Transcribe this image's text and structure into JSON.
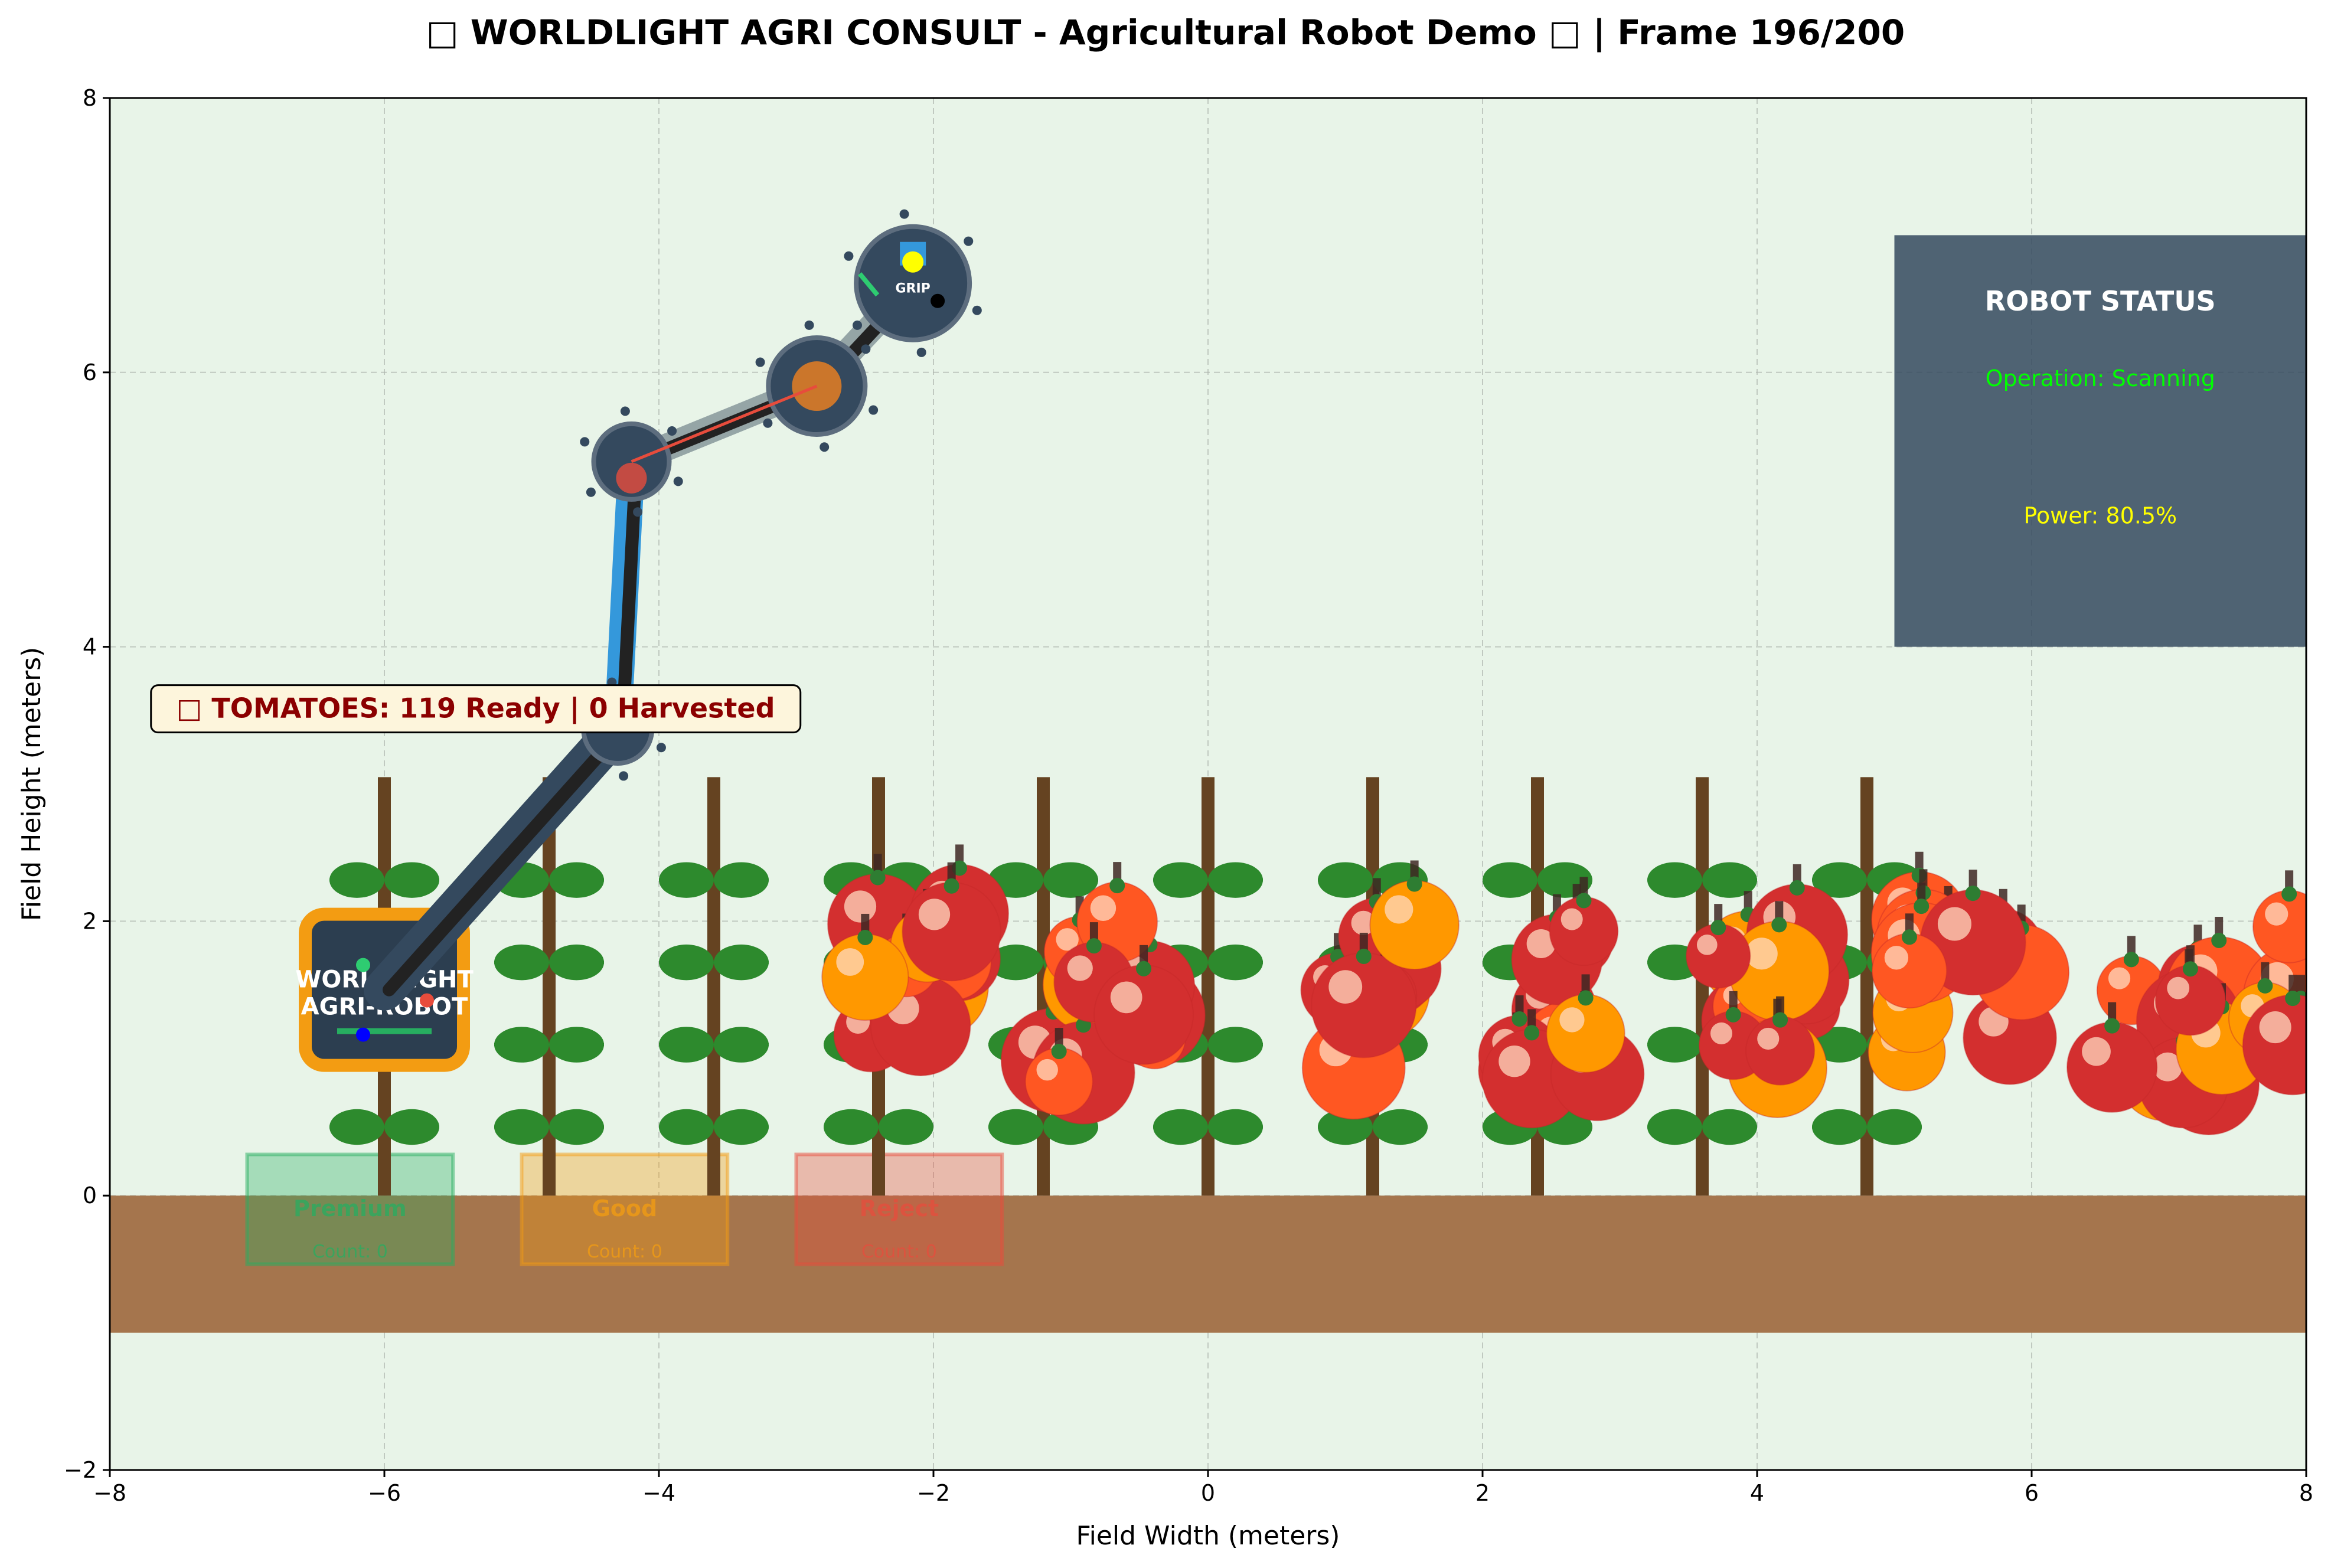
{
  "title": "□ WORLDLIGHT AGRI CONSULT - Agricultural Robot Demo □ | Frame 196/200",
  "chart_data": {
    "type": "scatter",
    "xlabel": "Field Width (meters)",
    "ylabel": "Field Height (meters)",
    "xlim": [
      -8,
      8
    ],
    "ylim": [
      -2,
      8
    ],
    "xticks": [
      -8,
      -6,
      -4,
      -2,
      0,
      2,
      4,
      6,
      8
    ],
    "yticks": [
      -2,
      0,
      2,
      4,
      6,
      8
    ],
    "xtick_labels": [
      "−8",
      "−6",
      "−4",
      "−2",
      "0",
      "2",
      "4",
      "6",
      "8"
    ],
    "ytick_labels": [
      "−2",
      "0",
      "2",
      "4",
      "6",
      "8"
    ],
    "grid": true,
    "ground": {
      "y0": -1,
      "y1": 0,
      "color": "#a5754d"
    },
    "plant_stakes_x": [
      -6,
      -4.8,
      -3.6,
      -2.4,
      -1.2,
      0,
      1.2,
      2.4,
      3.6,
      4.8
    ],
    "leaf_rows_y": [
      0.5,
      1.1,
      1.7,
      2.3
    ],
    "robot": {
      "label": "WORLDLIGHT\nAGRI-ROBOT",
      "base": {
        "x": -6,
        "y": 1.5
      },
      "joints": [
        {
          "x": -6,
          "y": 1.5
        },
        {
          "x": -4.3,
          "y": 3.4
        },
        {
          "x": -4.2,
          "y": 5.35
        },
        {
          "x": -2.85,
          "y": 5.9
        },
        {
          "x": -2.15,
          "y": 6.65
        }
      ],
      "gripper_label": "GRIP"
    },
    "bins": [
      {
        "name": "Premium",
        "count_label": "Count: 0",
        "x0": -7,
        "x1": -5.5,
        "color": "#27ae60"
      },
      {
        "name": "Good",
        "count_label": "Count: 0",
        "x0": -5,
        "x1": -3.5,
        "color": "#f39c12"
      },
      {
        "name": "Reject",
        "count_label": "Count: 0",
        "x0": -3,
        "x1": -1.5,
        "color": "#e74c3c"
      }
    ],
    "status_panel": {
      "title": "ROBOT STATUS",
      "operation": "Operation: Scanning",
      "power": "Power: 80.5%",
      "x0": 5,
      "x1": 8,
      "y0": 4,
      "y1": 7
    },
    "banner": "□ TOMATOES: 119 Ready | 0 Harvested",
    "tomato_clusters": [
      {
        "x": -2.05,
        "y": 1.5
      },
      {
        "x": -0.7,
        "y": 1.4
      },
      {
        "x": 1.1,
        "y": 1.45
      },
      {
        "x": 2.5,
        "y": 1.4
      },
      {
        "x": 4.0,
        "y": 1.5
      },
      {
        "x": 5.5,
        "y": 1.6
      },
      {
        "x": 7.0,
        "y": 1.35
      },
      {
        "x": 8.1,
        "y": 1.4
      }
    ]
  },
  "colors": {
    "background": "#e8f4e8",
    "stake": "#654321",
    "leaf": "#2d8a2d",
    "tomato_red": "#d32f2f",
    "tomato_orange": "#ff5722",
    "tomato_yellow": "#ff9800",
    "panel": "#34495e",
    "status_green": "#00ff00",
    "status_yellow": "#ffff00"
  }
}
